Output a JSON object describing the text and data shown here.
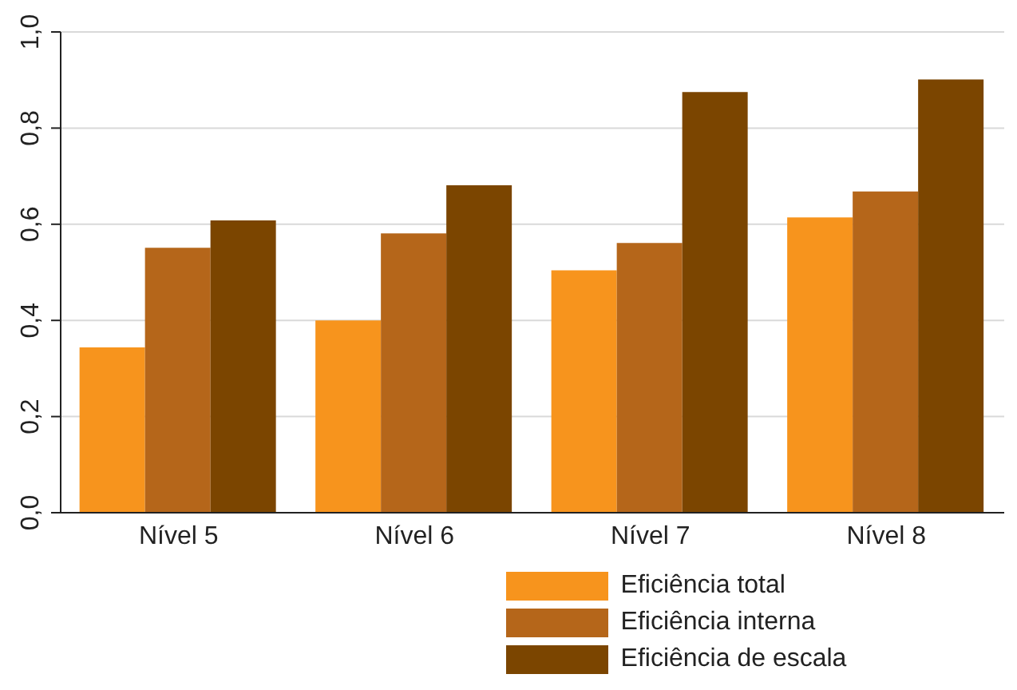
{
  "chart_data": {
    "type": "bar",
    "categories": [
      "Nível 5",
      "Nível 6",
      "Nível 7",
      "Nível 8"
    ],
    "series": [
      {
        "name": "Eficiência total",
        "color": "#f7941d",
        "values": [
          0.344,
          0.4,
          0.504,
          0.614
        ]
      },
      {
        "name": "Eficiência interna",
        "color": "#b5661a",
        "values": [
          0.551,
          0.581,
          0.561,
          0.668
        ]
      },
      {
        "name": "Eficiência de escala",
        "color": "#7b4500",
        "values": [
          0.608,
          0.681,
          0.875,
          0.901
        ]
      }
    ],
    "ylim": [
      0,
      1
    ],
    "yticks": [
      {
        "value": 0,
        "label": "0,0"
      },
      {
        "value": 0.2,
        "label": "0,2"
      },
      {
        "value": 0.4,
        "label": "0,4"
      },
      {
        "value": 0.6,
        "label": "0,6"
      },
      {
        "value": 0.8,
        "label": "0,8"
      },
      {
        "value": 1,
        "label": "1,0"
      }
    ],
    "grid": "y",
    "legend": "bottom"
  }
}
